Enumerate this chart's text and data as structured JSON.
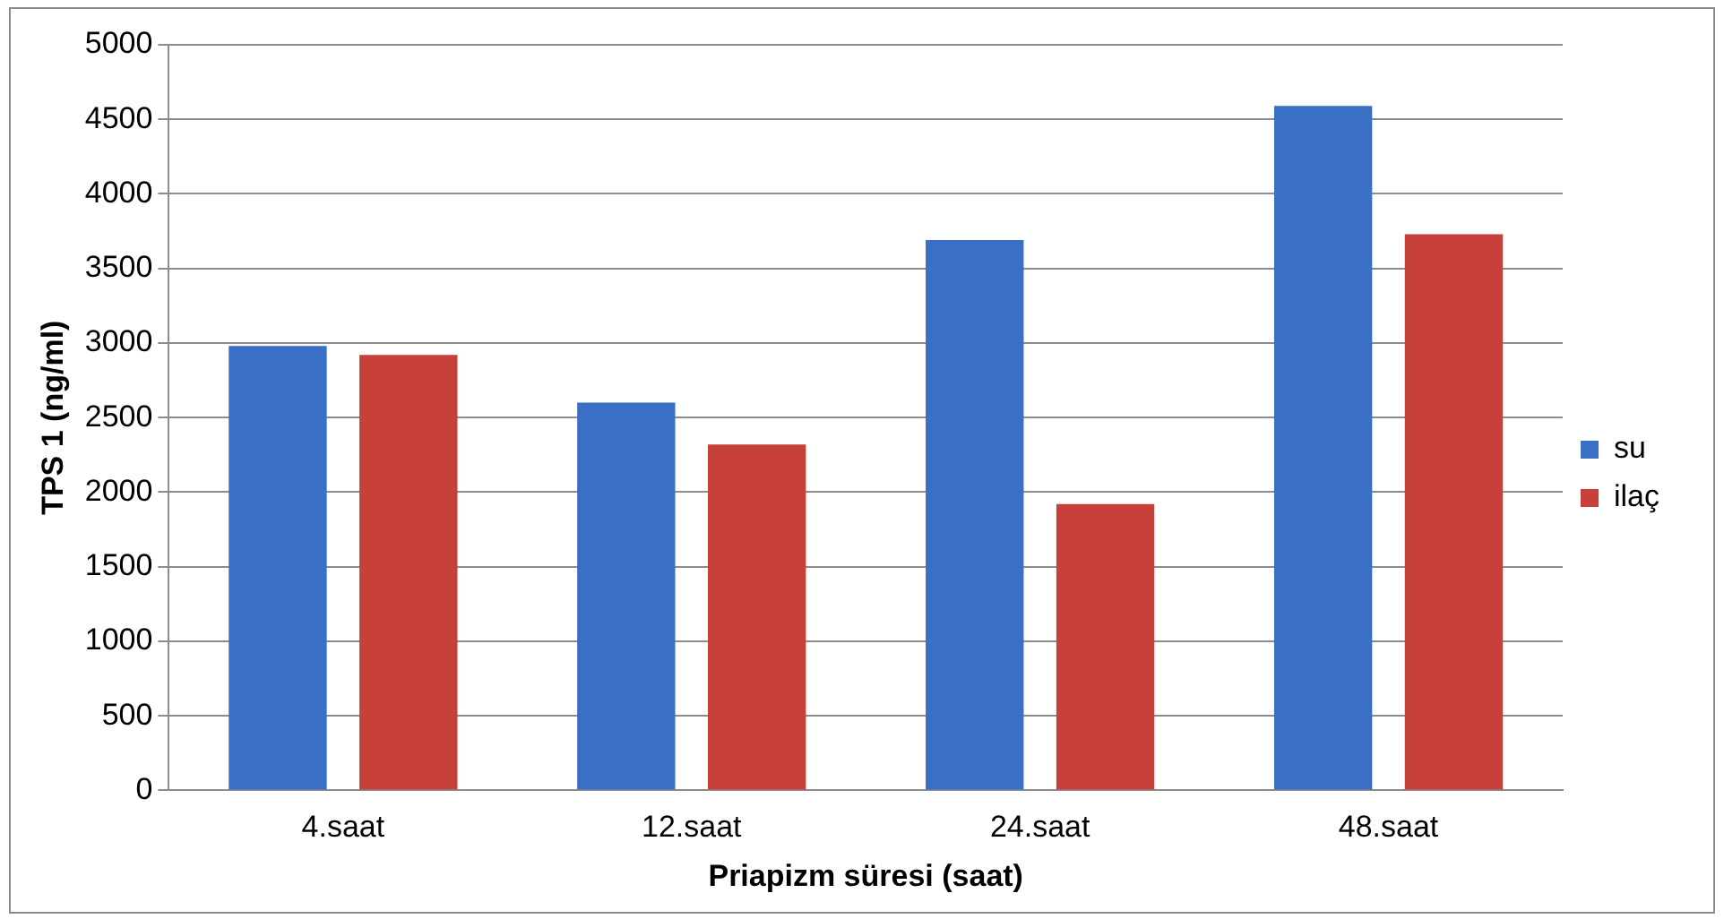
{
  "chart_data": {
    "type": "bar",
    "xlabel": "Priapizm süresi (saat)",
    "ylabel": "TPS 1 (ng/ml)",
    "categories": [
      "4.saat",
      "12.saat",
      "24.saat",
      "48.saat"
    ],
    "series": [
      {
        "name": "su",
        "color": "#3a6fc6",
        "values": [
          2980,
          2600,
          3690,
          4590
        ]
      },
      {
        "name": "ilaç",
        "color": "#c8403a",
        "values": [
          2920,
          2320,
          1920,
          3730
        ]
      }
    ],
    "ylim": [
      0,
      5000
    ],
    "yticks": [
      0,
      500,
      1000,
      1500,
      2000,
      2500,
      3000,
      3500,
      4000,
      4500,
      5000
    ],
    "grid": "y",
    "legend": "right"
  }
}
